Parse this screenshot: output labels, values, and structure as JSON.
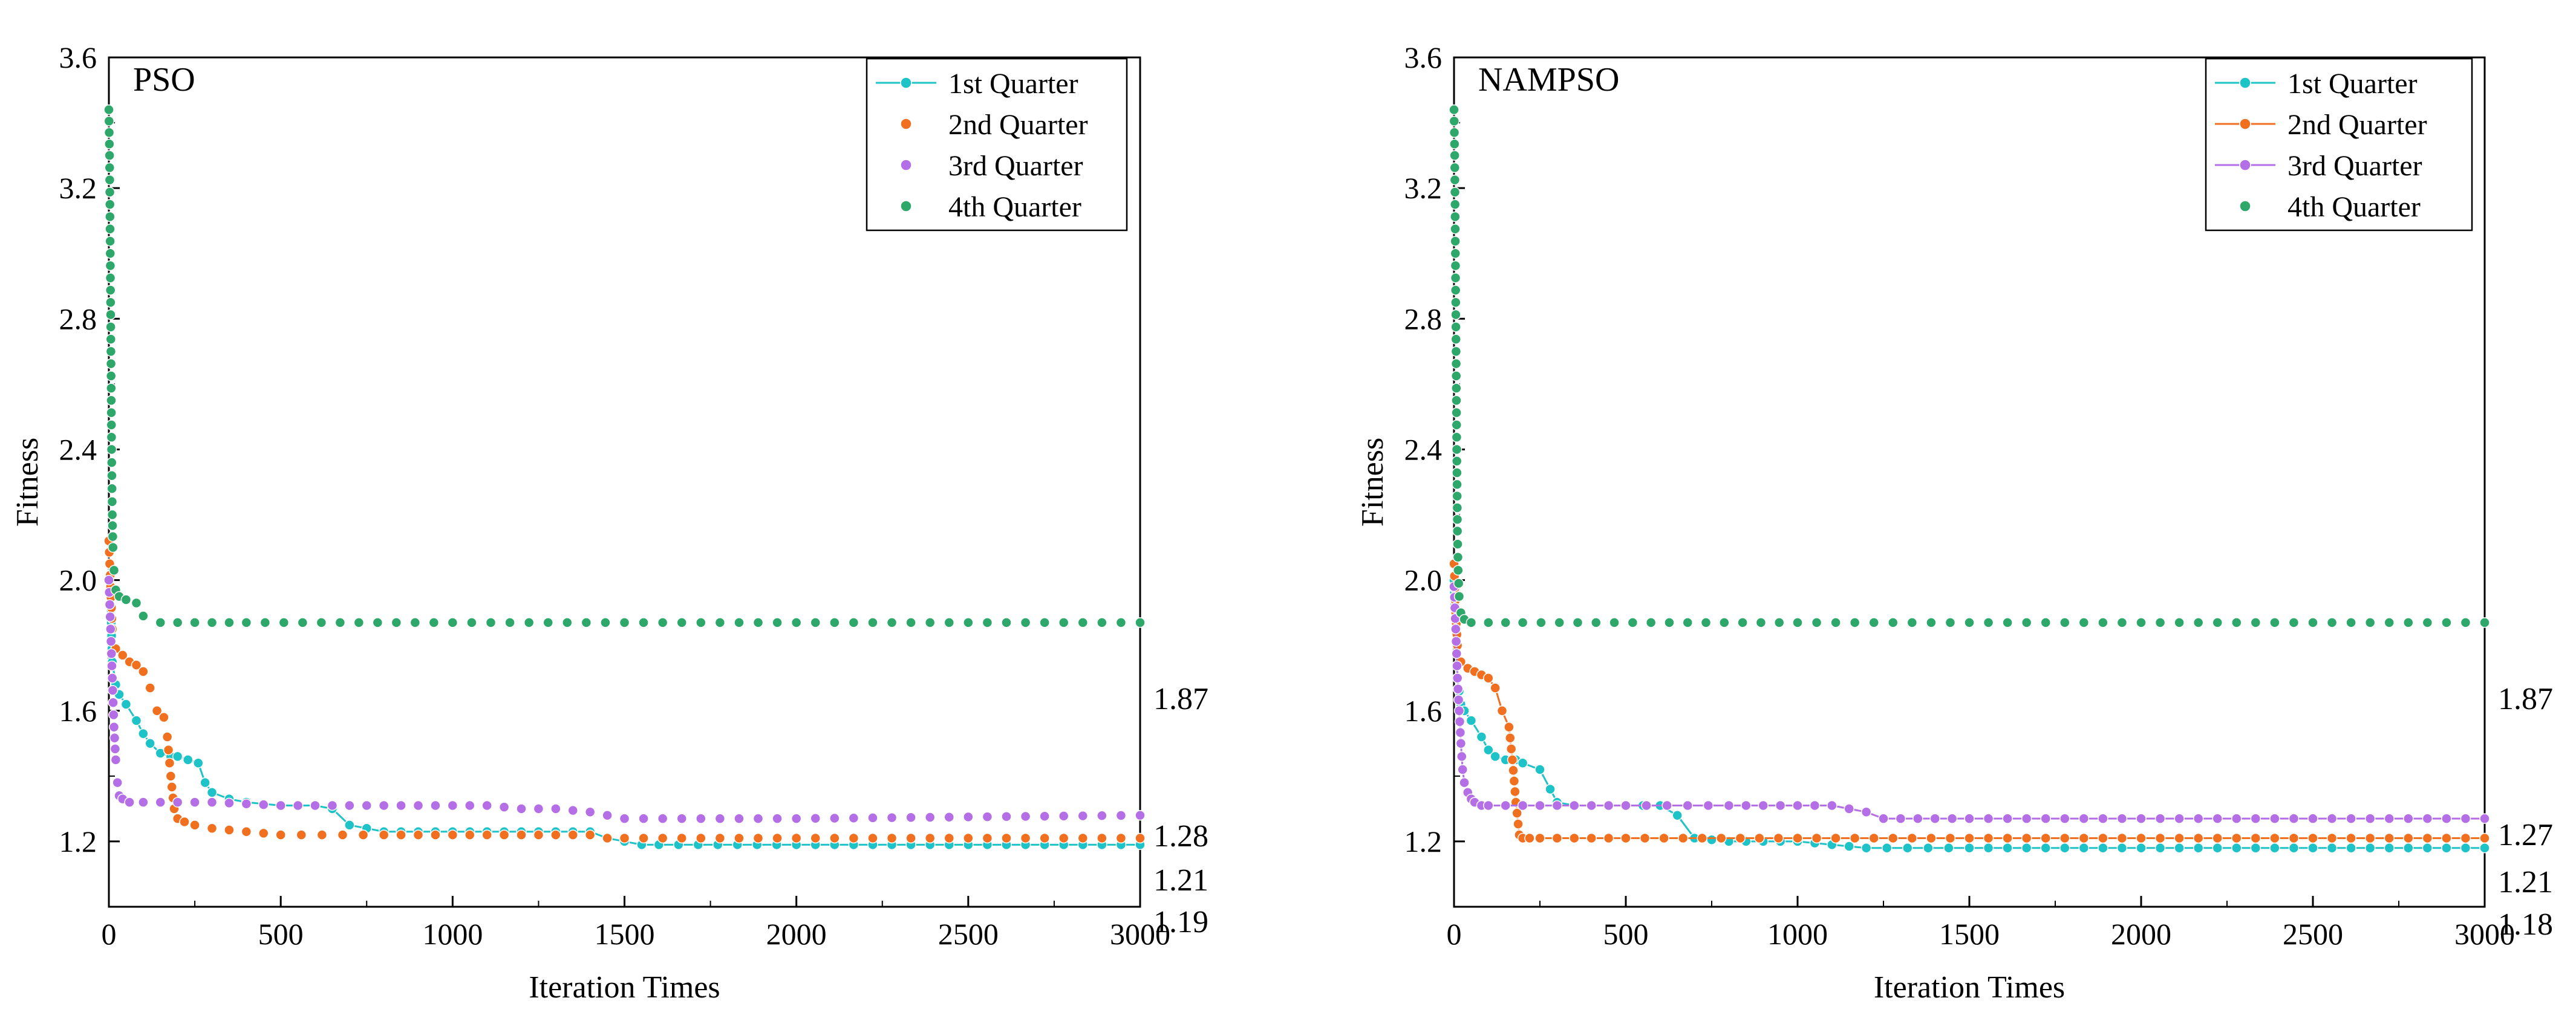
{
  "figure": {
    "x_label": "Iteration Times",
    "y_label": "Fitness"
  },
  "chart_data": [
    {
      "type": "line",
      "title": "PSO",
      "xlabel": "Iteration Times",
      "ylabel": "Fitness",
      "xlim": [
        0,
        3000
      ],
      "ylim": [
        1.0,
        3.6
      ],
      "xticks": [
        "0",
        "500",
        "1000",
        "1500",
        "2000",
        "2500",
        "3000"
      ],
      "yticks": [
        "1.2",
        "1.6",
        "2.0",
        "2.4",
        "2.8",
        "3.2",
        "3.6"
      ],
      "legend_position": "top-right",
      "grid": false,
      "end_labels": [
        "1.87",
        "1.28",
        "1.21",
        "1.19"
      ],
      "series": [
        {
          "name": "1st Quarter",
          "color": "#1ec3c8",
          "line": true,
          "x": [
            0,
            5,
            10,
            20,
            30,
            50,
            80,
            100,
            120,
            150,
            180,
            200,
            230,
            260,
            280,
            300,
            350,
            400,
            500,
            600,
            650,
            700,
            800,
            900,
            1000,
            1100,
            1200,
            1300,
            1400,
            1450,
            1500,
            1550,
            1600,
            2000,
            2500,
            3000
          ],
          "y": [
            2.05,
            1.95,
            1.75,
            1.68,
            1.65,
            1.62,
            1.57,
            1.53,
            1.5,
            1.47,
            1.46,
            1.46,
            1.45,
            1.44,
            1.38,
            1.35,
            1.33,
            1.32,
            1.31,
            1.31,
            1.3,
            1.25,
            1.23,
            1.23,
            1.23,
            1.23,
            1.23,
            1.23,
            1.23,
            1.21,
            1.2,
            1.19,
            1.19,
            1.19,
            1.19,
            1.19
          ]
        },
        {
          "name": "2nd Quarter",
          "color": "#f07020",
          "line": false,
          "x": [
            0,
            5,
            10,
            20,
            40,
            60,
            80,
            100,
            120,
            140,
            160,
            170,
            180,
            190,
            200,
            220,
            250,
            300,
            400,
            500,
            800,
            1000,
            1200,
            1400,
            1450,
            1500,
            2000,
            3000
          ],
          "y": [
            2.12,
            1.98,
            1.85,
            1.79,
            1.77,
            1.75,
            1.74,
            1.72,
            1.67,
            1.6,
            1.58,
            1.52,
            1.4,
            1.3,
            1.27,
            1.26,
            1.25,
            1.24,
            1.23,
            1.22,
            1.22,
            1.22,
            1.22,
            1.22,
            1.21,
            1.21,
            1.21,
            1.21
          ]
        },
        {
          "name": "3rd Quarter",
          "color": "#b46ee6",
          "line": false,
          "x": [
            0,
            5,
            10,
            15,
            20,
            25,
            30,
            40,
            60,
            100,
            150,
            300,
            500,
            600,
            800,
            1000,
            1100,
            1200,
            1300,
            1400,
            1450,
            1500,
            2000,
            3000
          ],
          "y": [
            2.0,
            1.85,
            1.7,
            1.55,
            1.45,
            1.38,
            1.34,
            1.33,
            1.32,
            1.32,
            1.32,
            1.32,
            1.31,
            1.31,
            1.31,
            1.31,
            1.31,
            1.3,
            1.3,
            1.29,
            1.28,
            1.27,
            1.27,
            1.28
          ]
        },
        {
          "name": "4th Quarter",
          "color": "#2ea86a",
          "line": false,
          "x": [
            0,
            2,
            4,
            6,
            8,
            10,
            12,
            15,
            20,
            30,
            50,
            80,
            100,
            150,
            200,
            400,
            1000,
            2000,
            3000
          ],
          "y": [
            3.44,
            3.3,
            3.0,
            2.7,
            2.4,
            2.2,
            2.1,
            2.03,
            1.97,
            1.95,
            1.94,
            1.93,
            1.89,
            1.87,
            1.87,
            1.87,
            1.87,
            1.87,
            1.87
          ]
        }
      ]
    },
    {
      "type": "line",
      "title": "NAMPSO",
      "xlabel": "Iteration Times",
      "ylabel": "Fitness",
      "xlim": [
        0,
        3000
      ],
      "ylim": [
        1.0,
        3.6
      ],
      "xticks": [
        "0",
        "500",
        "1000",
        "1500",
        "2000",
        "2500",
        "3000"
      ],
      "yticks": [
        "1.2",
        "1.6",
        "2.0",
        "2.4",
        "2.8",
        "3.2",
        "3.6"
      ],
      "legend_position": "top-right",
      "grid": false,
      "end_labels": [
        "1.87",
        "1.27",
        "1.21",
        "1.18"
      ],
      "series": [
        {
          "name": "1st Quarter",
          "color": "#1ec3c8",
          "line": true,
          "x": [
            0,
            5,
            10,
            20,
            30,
            50,
            80,
            100,
            120,
            150,
            180,
            200,
            250,
            280,
            300,
            350,
            400,
            500,
            600,
            650,
            700,
            800,
            1000,
            1100,
            1200,
            1500,
            2000,
            3000
          ],
          "y": [
            2.0,
            1.85,
            1.7,
            1.62,
            1.6,
            1.57,
            1.52,
            1.48,
            1.46,
            1.45,
            1.45,
            1.44,
            1.42,
            1.36,
            1.32,
            1.31,
            1.31,
            1.31,
            1.31,
            1.28,
            1.21,
            1.2,
            1.2,
            1.19,
            1.18,
            1.18,
            1.18,
            1.18
          ]
        },
        {
          "name": "2nd Quarter",
          "color": "#f07020",
          "line": true,
          "x": [
            0,
            5,
            10,
            20,
            40,
            60,
            80,
            100,
            120,
            140,
            160,
            170,
            180,
            190,
            200,
            220,
            250,
            300,
            500,
            1000,
            2000,
            3000
          ],
          "y": [
            2.05,
            1.9,
            1.8,
            1.75,
            1.73,
            1.72,
            1.71,
            1.7,
            1.67,
            1.6,
            1.55,
            1.45,
            1.32,
            1.22,
            1.21,
            1.21,
            1.21,
            1.21,
            1.21,
            1.21,
            1.21,
            1.21
          ]
        },
        {
          "name": "3rd Quarter",
          "color": "#b46ee6",
          "line": true,
          "x": [
            0,
            5,
            10,
            15,
            20,
            25,
            30,
            40,
            50,
            60,
            80,
            100,
            150,
            300,
            500,
            800,
            1000,
            1100,
            1150,
            1200,
            1250,
            1500,
            2000,
            3000
          ],
          "y": [
            1.98,
            1.85,
            1.7,
            1.6,
            1.5,
            1.42,
            1.38,
            1.35,
            1.33,
            1.32,
            1.31,
            1.31,
            1.31,
            1.31,
            1.31,
            1.31,
            1.31,
            1.31,
            1.3,
            1.29,
            1.27,
            1.27,
            1.27,
            1.27
          ]
        },
        {
          "name": "4th Quarter",
          "color": "#2ea86a",
          "line": false,
          "x": [
            0,
            2,
            4,
            6,
            8,
            10,
            12,
            15,
            20,
            30,
            50,
            100,
            200,
            1000,
            2000,
            3000
          ],
          "y": [
            3.44,
            3.3,
            3.0,
            2.7,
            2.4,
            2.15,
            2.03,
            1.95,
            1.9,
            1.88,
            1.87,
            1.87,
            1.87,
            1.87,
            1.87,
            1.87
          ]
        }
      ]
    }
  ]
}
